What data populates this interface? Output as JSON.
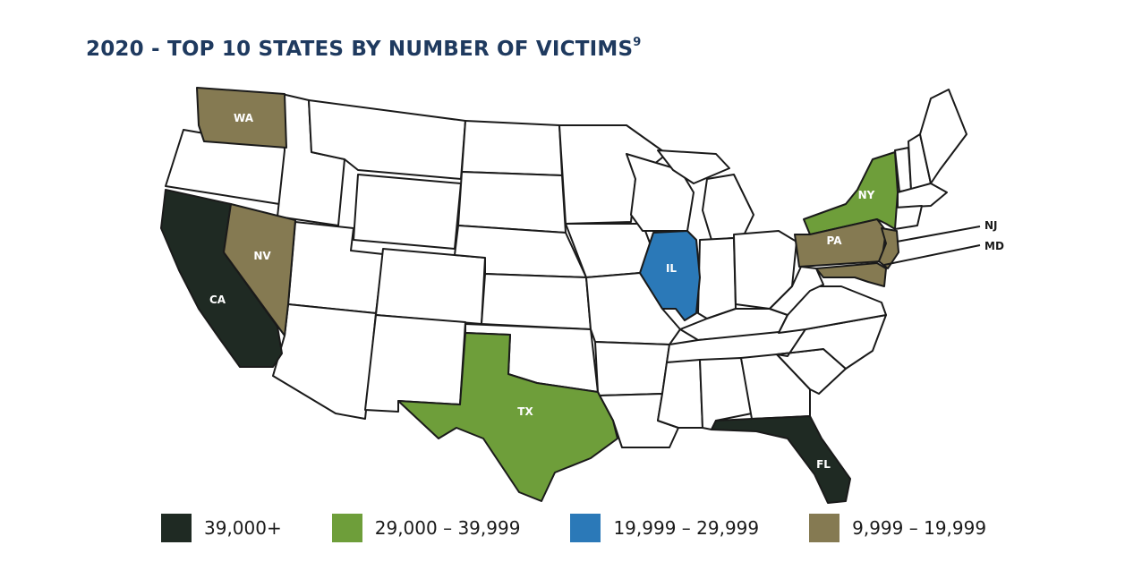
{
  "title": "2020 - TOP 10 STATES BY NUMBER OF VICTIMS",
  "title_footnote": "9",
  "colors": {
    "tier1": "#1f2a23",
    "tier2": "#6e9e3a",
    "tier3": "#2b79b8",
    "tier4": "#857a52",
    "unshaded": "#ffffff",
    "border": "#1a1a1a",
    "title": "#1f3a5f"
  },
  "states": [
    {
      "abbr": "CA",
      "tier": "tier1"
    },
    {
      "abbr": "FL",
      "tier": "tier1"
    },
    {
      "abbr": "TX",
      "tier": "tier2"
    },
    {
      "abbr": "NY",
      "tier": "tier2"
    },
    {
      "abbr": "IL",
      "tier": "tier3"
    },
    {
      "abbr": "WA",
      "tier": "tier4"
    },
    {
      "abbr": "NV",
      "tier": "tier4"
    },
    {
      "abbr": "PA",
      "tier": "tier4"
    },
    {
      "abbr": "NJ",
      "tier": "tier4"
    },
    {
      "abbr": "MD",
      "tier": "tier4"
    }
  ],
  "legend": [
    {
      "tier": "tier1",
      "label": "39,000+"
    },
    {
      "tier": "tier2",
      "label": "29,000 – 39,999"
    },
    {
      "tier": "tier3",
      "label": "19,999 – 29,999"
    },
    {
      "tier": "tier4",
      "label": "9,999 – 19,999"
    }
  ]
}
